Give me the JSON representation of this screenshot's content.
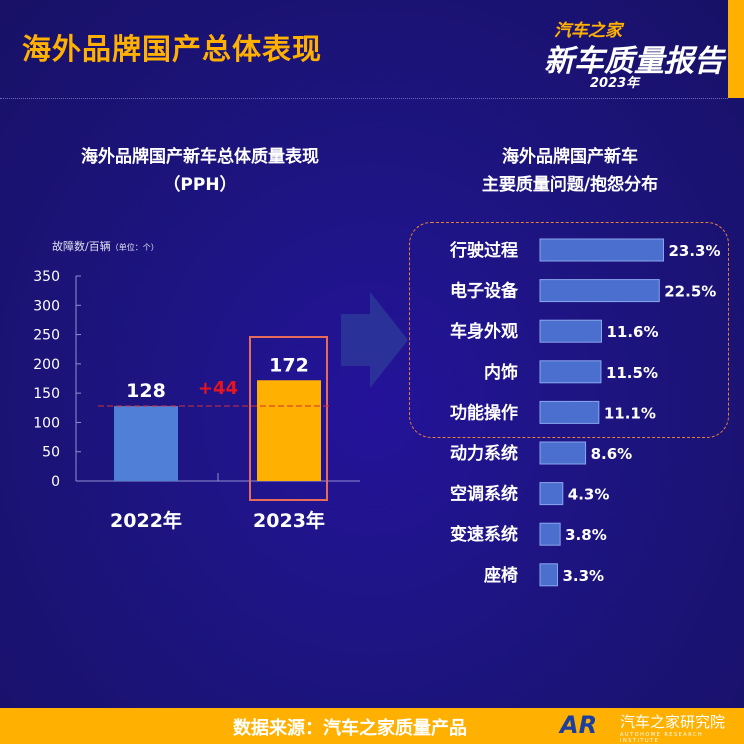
{
  "header": {
    "title": "海外品牌国产总体表现",
    "logo": {
      "line1": "汽车之家",
      "line2": "新车质量报告",
      "line3": "2023年"
    }
  },
  "colors": {
    "background": "#1b1170",
    "accent": "#ffb000",
    "bar2022": "#4f7fd6",
    "bar2023": "#ffb000",
    "hbar": "#4a6fcf",
    "delta": "#e8141e"
  },
  "chart_data": [
    {
      "type": "bar",
      "title": "海外品牌国产新车总体质量表现",
      "subtitle": "（PPH）",
      "ylabel": "故障数/百辆",
      "unit_note": "（单位：个）",
      "categories": [
        "2022年",
        "2023年"
      ],
      "values": [
        128,
        172
      ],
      "ylim": [
        0,
        350
      ],
      "yticks": [
        "0",
        "50",
        "100",
        "150",
        "200",
        "250",
        "300",
        "350"
      ],
      "annotation": "+44",
      "reference_line": 128,
      "highlight": "2023年"
    },
    {
      "type": "bar",
      "orientation": "horizontal",
      "title_line1": "海外品牌国产新车",
      "title_line2": "主要质量问题/抱怨分布",
      "categories": [
        "行驶过程",
        "电子设备",
        "车身外观",
        "内饰",
        "功能操作",
        "动力系统",
        "空调系统",
        "变速系统",
        "座椅"
      ],
      "values": [
        23.3,
        22.5,
        11.6,
        11.5,
        11.1,
        8.6,
        4.3,
        3.8,
        3.3
      ],
      "labels": [
        "23.3%",
        "22.5%",
        "11.6%",
        "11.5%",
        "11.1%",
        "8.6%",
        "4.3%",
        "3.8%",
        "3.3%"
      ],
      "highlight_top": 5
    }
  ],
  "footer": {
    "source": "数据来源：汽车之家质量产品",
    "brand": "AR",
    "institute": "汽车之家研究院",
    "institute_en": "AUTOHOME RESEARCH INSTITUTE"
  }
}
